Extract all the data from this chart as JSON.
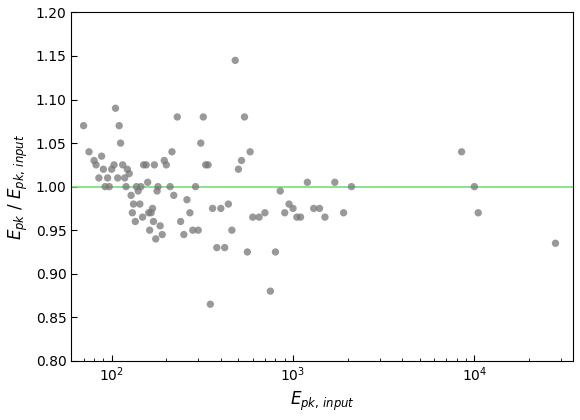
{
  "xlabel": "$E_{pk,\\,input}$",
  "ylabel": "$E_{pk}$ / $E_{pk,\\,input}$",
  "xlim": [
    60,
    35000
  ],
  "ylim": [
    0.8,
    1.2
  ],
  "yticks": [
    0.8,
    0.85,
    0.9,
    0.95,
    1.0,
    1.05,
    1.1,
    1.15,
    1.2
  ],
  "hline_y": 1.0,
  "hline_color": "#77dd77",
  "dot_color": "#777777",
  "dot_alpha": 0.75,
  "dot_size": 28,
  "scatter_x": [
    70,
    75,
    80,
    82,
    85,
    88,
    90,
    92,
    95,
    97,
    100,
    103,
    105,
    108,
    110,
    112,
    115,
    118,
    120,
    122,
    125,
    128,
    130,
    132,
    135,
    137,
    140,
    143,
    145,
    148,
    150,
    155,
    158,
    160,
    162,
    165,
    168,
    170,
    172,
    175,
    178,
    180,
    185,
    190,
    195,
    200,
    210,
    215,
    220,
    230,
    240,
    250,
    260,
    270,
    280,
    290,
    300,
    310,
    320,
    330,
    340,
    350,
    360,
    380,
    400,
    420,
    440,
    460,
    480,
    500,
    520,
    540,
    560,
    580,
    600,
    650,
    700,
    750,
    800,
    850,
    900,
    950,
    1000,
    1050,
    1100,
    1200,
    1300,
    1400,
    1500,
    1700,
    1900,
    2100,
    8500,
    10000,
    10500,
    28000
  ],
  "scatter_y": [
    1.07,
    1.04,
    1.03,
    1.025,
    1.01,
    1.035,
    1.02,
    1.0,
    1.01,
    1.0,
    1.02,
    1.025,
    1.09,
    1.01,
    1.07,
    1.05,
    1.025,
    1.01,
    1.0,
    1.02,
    1.015,
    0.99,
    0.97,
    0.98,
    0.96,
    1.0,
    0.995,
    0.98,
    1.0,
    0.965,
    1.025,
    1.025,
    1.005,
    0.97,
    0.95,
    0.97,
    0.975,
    0.96,
    1.025,
    0.94,
    0.995,
    1.0,
    0.955,
    0.945,
    1.03,
    1.025,
    1.0,
    1.04,
    0.99,
    1.08,
    0.96,
    0.945,
    0.985,
    0.97,
    0.95,
    1.0,
    0.95,
    1.05,
    1.08,
    1.025,
    1.025,
    0.865,
    0.975,
    0.93,
    0.975,
    0.93,
    0.98,
    0.95,
    1.145,
    1.02,
    1.03,
    1.08,
    0.925,
    1.04,
    0.965,
    0.965,
    0.97,
    0.88,
    0.925,
    0.995,
    0.97,
    0.98,
    0.975,
    0.965,
    0.965,
    1.005,
    0.975,
    0.975,
    0.965,
    1.005,
    0.97,
    1.0,
    1.04,
    1.0,
    0.97,
    0.935
  ],
  "figsize": [
    5.8,
    4.2
  ],
  "dpi": 100
}
